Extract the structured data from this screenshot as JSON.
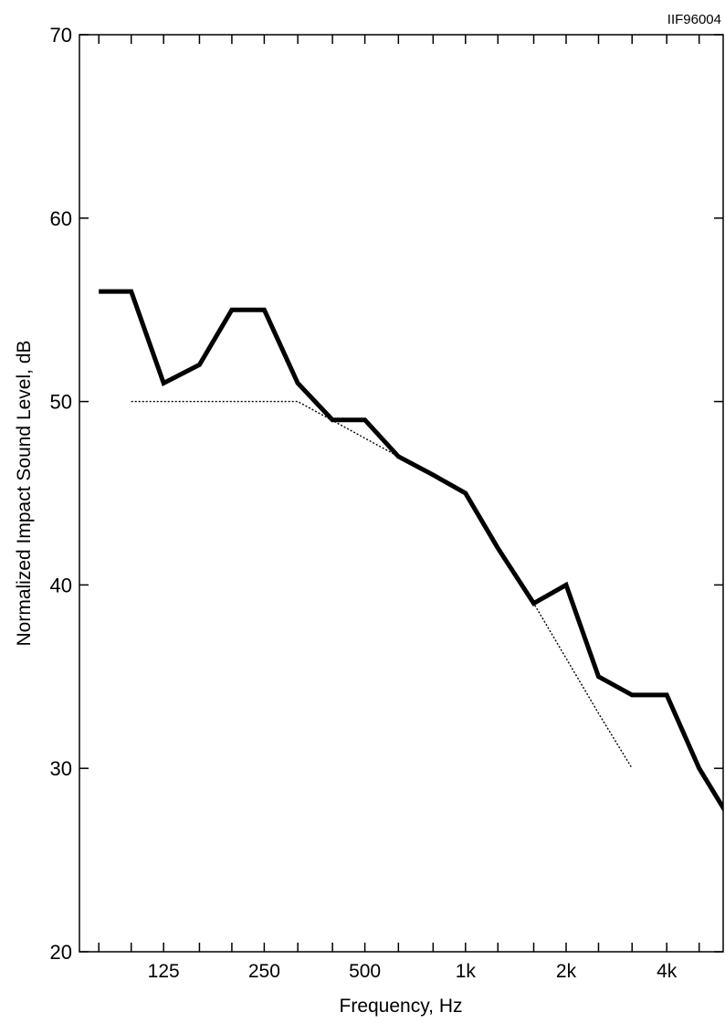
{
  "chart_data": {
    "type": "line",
    "title": "",
    "corner_label": "IIF96004",
    "xlabel": "Frequency, Hz",
    "ylabel": "Normalized Impact Sound Level, dB",
    "xscale": "log",
    "ylim": [
      20,
      70
    ],
    "xlim": [
      70,
      5900
    ],
    "y_ticks": [
      20,
      30,
      40,
      50,
      60,
      70
    ],
    "x_tick_labels": [
      {
        "value": 125,
        "label": "125"
      },
      {
        "value": 250,
        "label": "250"
      },
      {
        "value": 500,
        "label": "500"
      },
      {
        "value": 1000,
        "label": "1k"
      },
      {
        "value": 2000,
        "label": "2k"
      },
      {
        "value": 4000,
        "label": "4k"
      }
    ],
    "x_minor_ticks": [
      80,
      100,
      160,
      200,
      315,
      400,
      630,
      800,
      1250,
      1600,
      2500,
      3150,
      5000
    ],
    "grid": false,
    "series": [
      {
        "name": "",
        "style": "solid-thick",
        "color": "#000000",
        "points": [
          {
            "x": 80,
            "y": 56
          },
          {
            "x": 100,
            "y": 56
          },
          {
            "x": 125,
            "y": 51
          },
          {
            "x": 160,
            "y": 52
          },
          {
            "x": 200,
            "y": 55
          },
          {
            "x": 250,
            "y": 55
          },
          {
            "x": 315,
            "y": 51
          },
          {
            "x": 400,
            "y": 49
          },
          {
            "x": 500,
            "y": 49
          },
          {
            "x": 630,
            "y": 47
          },
          {
            "x": 800,
            "y": 46
          },
          {
            "x": 1000,
            "y": 45
          },
          {
            "x": 1250,
            "y": 42
          },
          {
            "x": 1600,
            "y": 39
          },
          {
            "x": 2000,
            "y": 40
          },
          {
            "x": 2500,
            "y": 35
          },
          {
            "x": 3150,
            "y": 34
          },
          {
            "x": 4000,
            "y": 34
          },
          {
            "x": 5000,
            "y": 30
          },
          {
            "x": 6300,
            "y": 27
          }
        ]
      },
      {
        "name": "",
        "style": "dotted",
        "color": "#000000",
        "points": [
          {
            "x": 100,
            "y": 50
          },
          {
            "x": 315,
            "y": 50
          },
          {
            "x": 630,
            "y": 47
          },
          {
            "x": 1000,
            "y": 45
          },
          {
            "x": 1250,
            "y": 42
          },
          {
            "x": 1600,
            "y": 39
          },
          {
            "x": 2000,
            "y": 36
          },
          {
            "x": 2500,
            "y": 33
          },
          {
            "x": 3150,
            "y": 30
          }
        ]
      }
    ]
  }
}
